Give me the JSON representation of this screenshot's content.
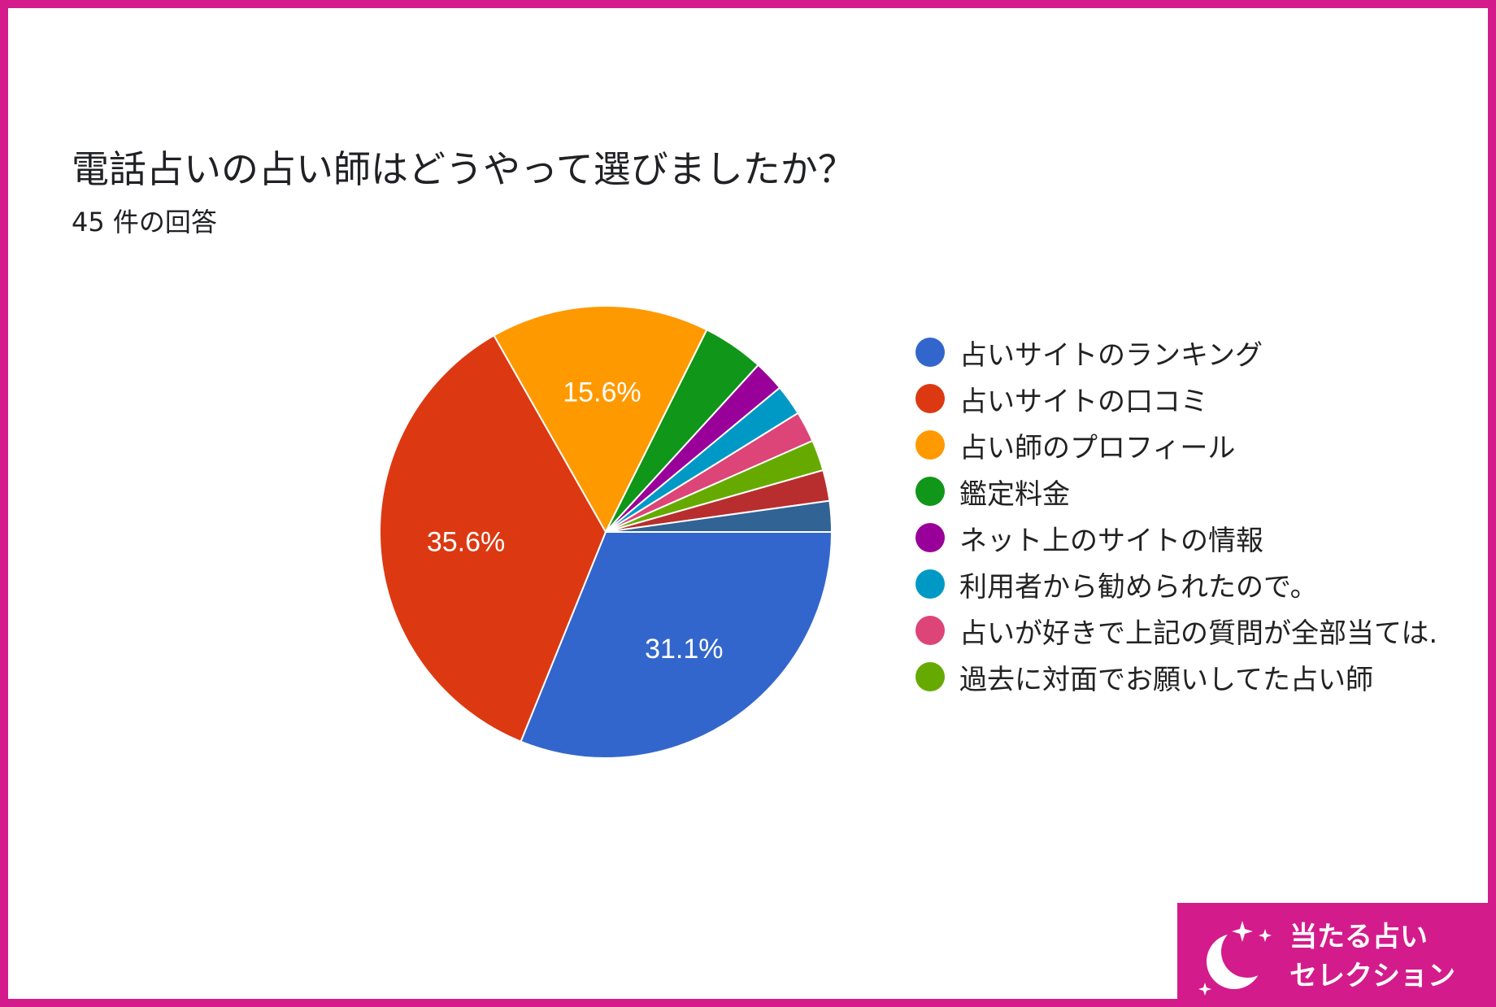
{
  "chart_data": {
    "type": "pie",
    "title": "電話占いの占い師はどうやって選びましたか？",
    "subtitle": "45 件の回答",
    "slices": [
      {
        "label": "占いサイトのランキング",
        "value": 31.1,
        "percent_label": "31.1%",
        "color": "#3366cc"
      },
      {
        "label": "占いサイトの口コミ",
        "value": 35.6,
        "percent_label": "35.6%",
        "color": "#dc3912"
      },
      {
        "label": "占い師のプロフィール",
        "value": 15.6,
        "percent_label": "15.6%",
        "color": "#ff9900"
      },
      {
        "label": "鑑定料金",
        "value": 4.4,
        "percent_label": "",
        "color": "#109618"
      },
      {
        "label": "ネット上のサイトの情報",
        "value": 2.2,
        "percent_label": "",
        "color": "#990099"
      },
      {
        "label": "利用者から勧められたので。",
        "value": 2.2,
        "percent_label": "",
        "color": "#0099c6"
      },
      {
        "label": "占いが好きで上記の質問が全部当ては.",
        "value": 2.2,
        "percent_label": "",
        "color": "#dd4477"
      },
      {
        "label": "過去に対面でお願いしてた占い師",
        "value": 2.2,
        "percent_label": "",
        "color": "#66aa00"
      },
      {
        "label": "",
        "value": 2.2,
        "percent_label": "",
        "color": "#b82e2e"
      },
      {
        "label": "",
        "value": 2.2,
        "percent_label": "",
        "color": "#316395"
      }
    ],
    "legend_position": "right"
  },
  "logo": {
    "line1": "当たる占い",
    "line2": "セレクション",
    "bg_color": "#d41b8b"
  },
  "border_color": "#d41b8b"
}
